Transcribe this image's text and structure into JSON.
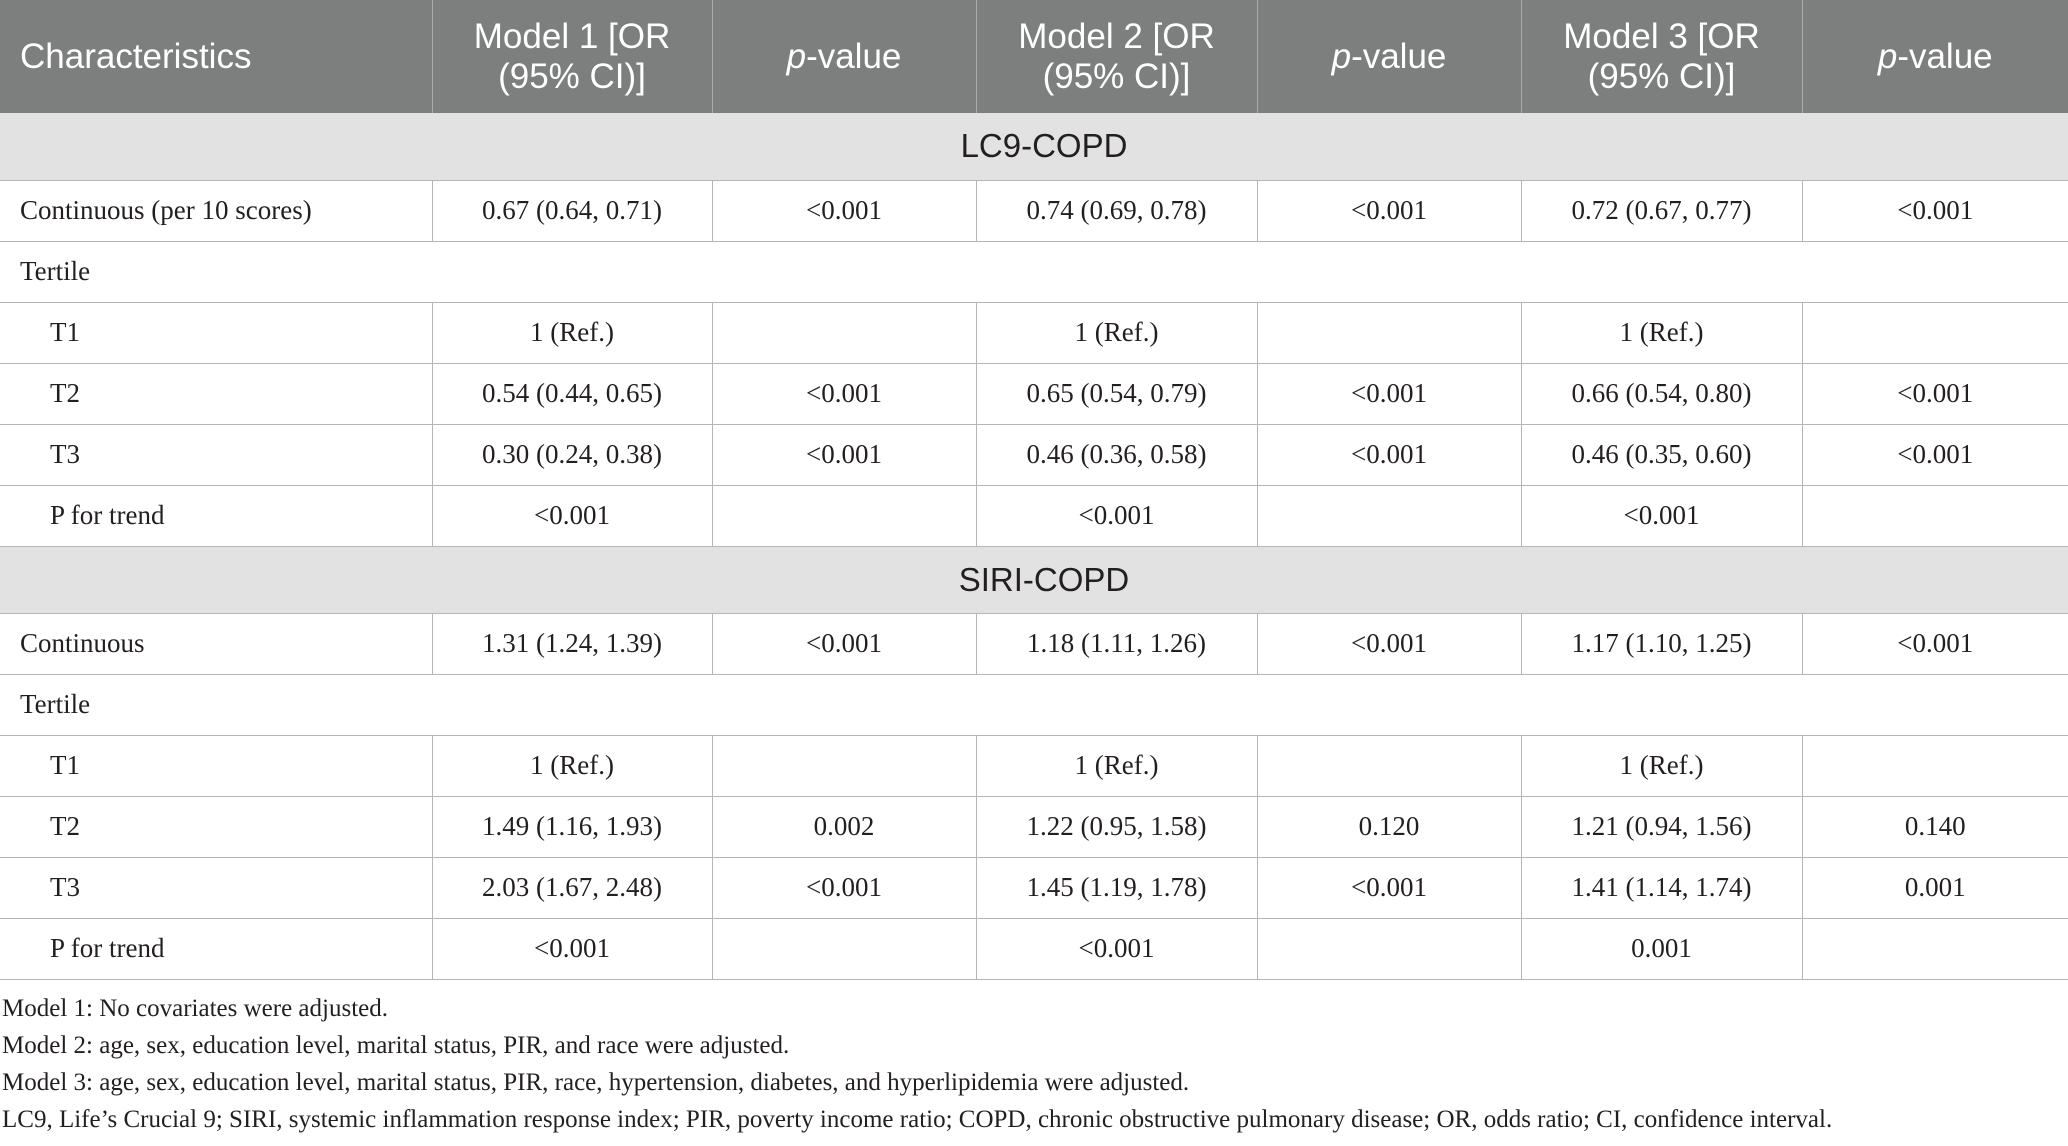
{
  "table": {
    "headers": [
      {
        "text": "Characteristics",
        "italic": ""
      },
      {
        "text": "Model 1 [OR (95% CI)]",
        "italic": ""
      },
      {
        "italic": "p",
        "text": "-value"
      },
      {
        "text": "Model 2 [OR (95% CI)]",
        "italic": ""
      },
      {
        "italic": "p",
        "text": "-value"
      },
      {
        "text": "Model 3 [OR (95% CI)]",
        "italic": ""
      },
      {
        "italic": "p",
        "text": "-value"
      }
    ],
    "sections": [
      {
        "title": "LC9-COPD",
        "rows": [
          {
            "label": "Continuous (per 10 scores)",
            "indent": false,
            "cells": [
              "0.67 (0.64, 0.71)",
              "<0.001",
              "0.74 (0.69, 0.78)",
              "<0.001",
              "0.72 (0.67, 0.77)",
              "<0.001"
            ]
          },
          {
            "label": "Tertile",
            "indent": false,
            "span": true,
            "cells": []
          },
          {
            "label": "T1",
            "indent": true,
            "cells": [
              "1 (Ref.)",
              "",
              "1 (Ref.)",
              "",
              "1 (Ref.)",
              ""
            ]
          },
          {
            "label": "T2",
            "indent": true,
            "cells": [
              "0.54 (0.44, 0.65)",
              "<0.001",
              "0.65 (0.54, 0.79)",
              "<0.001",
              "0.66 (0.54, 0.80)",
              "<0.001"
            ]
          },
          {
            "label": "T3",
            "indent": true,
            "cells": [
              "0.30 (0.24, 0.38)",
              "<0.001",
              "0.46 (0.36, 0.58)",
              "<0.001",
              "0.46 (0.35, 0.60)",
              "<0.001"
            ]
          },
          {
            "label": "P for trend",
            "indent": true,
            "cells": [
              "<0.001",
              "",
              "<0.001",
              "",
              "<0.001",
              ""
            ]
          }
        ]
      },
      {
        "title": "SIRI-COPD",
        "rows": [
          {
            "label": "Continuous",
            "indent": false,
            "cells": [
              "1.31 (1.24, 1.39)",
              "<0.001",
              "1.18 (1.11, 1.26)",
              "<0.001",
              "1.17 (1.10, 1.25)",
              "<0.001"
            ]
          },
          {
            "label": "Tertile",
            "indent": false,
            "span": true,
            "cells": []
          },
          {
            "label": "T1",
            "indent": true,
            "cells": [
              "1 (Ref.)",
              "",
              "1 (Ref.)",
              "",
              "1 (Ref.)",
              ""
            ]
          },
          {
            "label": "T2",
            "indent": true,
            "cells": [
              "1.49 (1.16, 1.93)",
              "0.002",
              "1.22 (0.95, 1.58)",
              "0.120",
              "1.21 (0.94, 1.56)",
              "0.140"
            ]
          },
          {
            "label": "T3",
            "indent": true,
            "cells": [
              "2.03 (1.67, 2.48)",
              "<0.001",
              "1.45 (1.19, 1.78)",
              "<0.001",
              "1.41 (1.14, 1.74)",
              "0.001"
            ]
          },
          {
            "label": "P for trend",
            "indent": true,
            "cells": [
              "<0.001",
              "",
              "<0.001",
              "",
              "0.001",
              ""
            ]
          }
        ]
      }
    ]
  },
  "notes": [
    "Model 1: No covariates were adjusted.",
    "Model 2: age, sex, education level, marital status, PIR, and race were adjusted.",
    "Model 3: age, sex, education level, marital status, PIR, race, hypertension, diabetes, and hyperlipidemia were adjusted.",
    "LC9, Life’s Crucial 9; SIRI, systemic inflammation response index; PIR, poverty income ratio; COPD, chronic obstructive pulmonary disease; OR, odds ratio; CI, confidence interval."
  ]
}
